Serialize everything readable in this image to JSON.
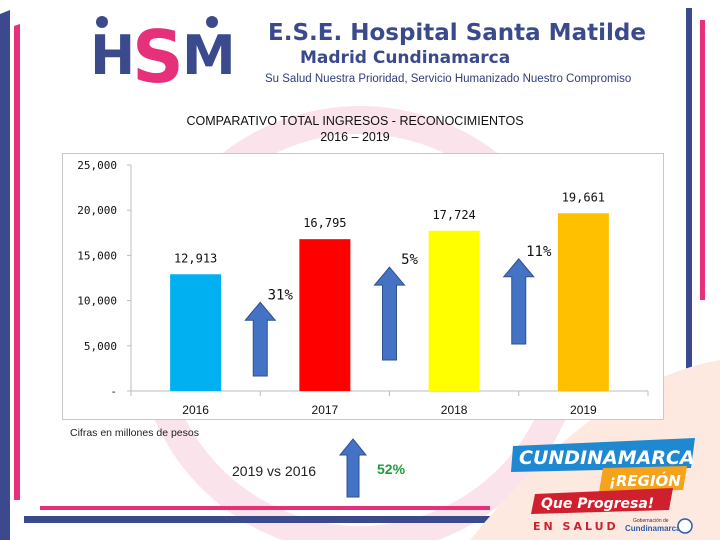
{
  "header": {
    "logo_text": "HSM",
    "title": "E.S.E. Hospital Santa Matilde",
    "subtitle": "Madrid Cundinamarca",
    "slogan": "Su Salud Nuestra Prioridad, Servicio Humanizado Nuestro Compromiso"
  },
  "chart_data": {
    "type": "bar",
    "title": "COMPARATIVO TOTAL INGRESOS - RECONOCIMIENTOS",
    "subtitle": "2016 – 2019",
    "categories": [
      "2016",
      "2017",
      "2018",
      "2019"
    ],
    "values": [
      12913,
      16795,
      17724,
      19661
    ],
    "value_labels": [
      "12,913",
      "16,795",
      "17,724",
      "19,661"
    ],
    "bar_colors": [
      "#00b0f0",
      "#ff0000",
      "#ffff00",
      "#ffc000"
    ],
    "y_ticks": [
      0,
      5000,
      10000,
      15000,
      20000,
      25000
    ],
    "y_tick_labels": [
      "-",
      "5,000",
      "10,000",
      "15,000",
      "20,000",
      "25,000"
    ],
    "ylim": [
      0,
      25000
    ],
    "grid": false,
    "growth_arrows": [
      {
        "label": "31%",
        "color": "#4472c4"
      },
      {
        "label": "5%",
        "color": "#4472c4"
      },
      {
        "label": "11%",
        "color": "#4472c4"
      }
    ]
  },
  "note": "Cifras en millones de pesos",
  "comparison": {
    "label": "2019 vs 2016",
    "value": "52%",
    "value_color": "#1e9e3a"
  },
  "badge": {
    "line1": "CUNDINAMARCA",
    "line2": "¡REGIÓN",
    "line3": "Que Progresa!",
    "line4": "EN SALUD",
    "gov_small": "Gobernación de",
    "gov_name": "Cundinamarca"
  },
  "colors": {
    "brand_blue": "#3b4a8c",
    "brand_pink": "#e6317a",
    "arrow_blue": "#4472c4"
  }
}
